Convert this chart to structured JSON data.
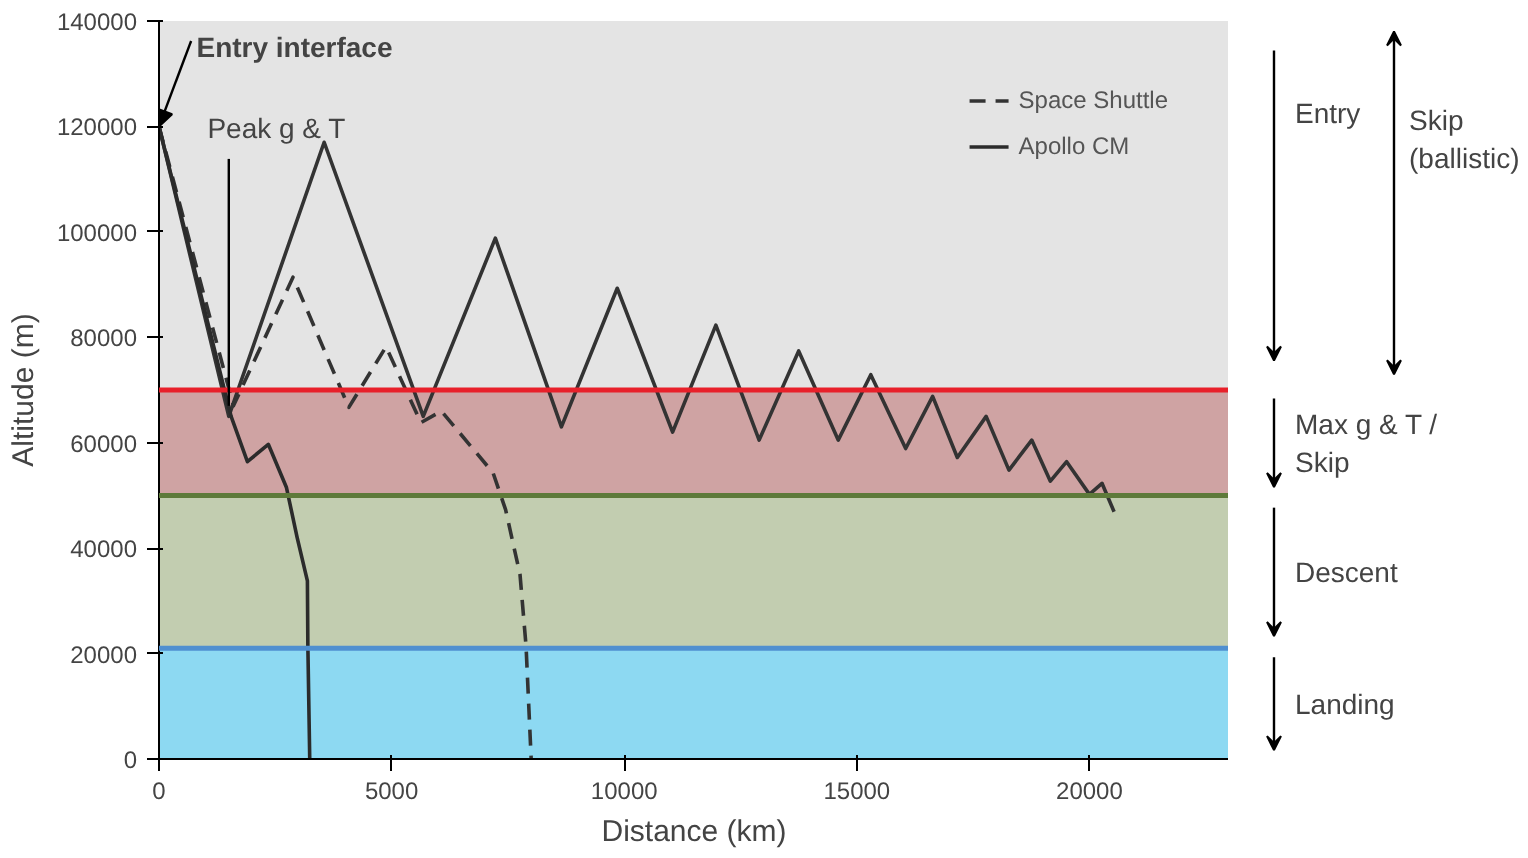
{
  "chart_data": {
    "type": "line",
    "xlabel": "Distance (km)",
    "ylabel": "Altitude (m)",
    "xlim": [
      0,
      23000
    ],
    "ylim": [
      0,
      140000
    ],
    "xticks": [
      0,
      5000,
      10000,
      15000,
      20000
    ],
    "yticks": [
      0,
      20000,
      40000,
      60000,
      80000,
      100000,
      120000,
      140000
    ],
    "legend": "top right",
    "series": [
      {
        "name": "Space Shuttle",
        "color": "#333333",
        "line_style": "dashed",
        "x": [
          0,
          1600,
          2880,
          4080,
          4880,
          5630,
          6070,
          7180,
          7450,
          7760,
          7890,
          8000
        ],
        "values": [
          120000,
          67000,
          91400,
          66700,
          78200,
          63800,
          66000,
          54300,
          47300,
          35000,
          21400,
          0
        ]
      },
      {
        "color": "#333333",
        "line_style": "solid",
        "x": [
          0,
          1500,
          3550,
          5680,
          7230,
          8650,
          9850,
          11040,
          11970,
          12900,
          13750,
          14600,
          15300,
          16050,
          16630,
          17160,
          17780,
          18270,
          18760,
          19160,
          19510,
          20000,
          20270,
          20530
        ],
        "values": [
          120000,
          65000,
          117000,
          65000,
          98800,
          63000,
          89300,
          62000,
          82300,
          60500,
          77400,
          60500,
          72900,
          58900,
          68800,
          57200,
          65000,
          54800,
          60500,
          52700,
          56400,
          50200,
          52300,
          46900
        ]
      },
      {
        "name": "Apollo CM",
        "color": "#2b2b2b",
        "line_style": "solid",
        "x": [
          0,
          1550,
          1900,
          2350,
          2740,
          2970,
          3190,
          3200,
          3240
        ],
        "values": [
          120000,
          65000,
          56400,
          59700,
          51500,
          42000,
          33800,
          21400,
          0
        ]
      }
    ],
    "bands": [
      {
        "axis": "y",
        "from": 70000,
        "to": 140000,
        "label": "Entry",
        "color": "#e4e4e4"
      },
      {
        "axis": "y",
        "from": 50000,
        "to": 70000,
        "label": "Max g & T /\nSkip",
        "color": "#cfa3a3"
      },
      {
        "axis": "y",
        "from": 21000,
        "to": 50000,
        "label": "Descent",
        "color": "#c2cdb0"
      },
      {
        "axis": "y",
        "from": 0,
        "to": 21000,
        "label": "Landing",
        "color": "#8dd9f2"
      }
    ],
    "ref_lines": [
      {
        "axis": "y",
        "value": 70000,
        "color": "#e8202a"
      },
      {
        "axis": "y",
        "value": 50000,
        "color": "#5e7a3a"
      },
      {
        "axis": "y",
        "value": 21000,
        "color": "#4f8fd0"
      }
    ],
    "annotations": [
      {
        "text": "Entry interface",
        "x": 0,
        "y": 120000
      },
      {
        "text": "Peak g & T",
        "x": 1500,
        "y": 67000
      },
      "Skip (ballistic)"
    ]
  }
}
